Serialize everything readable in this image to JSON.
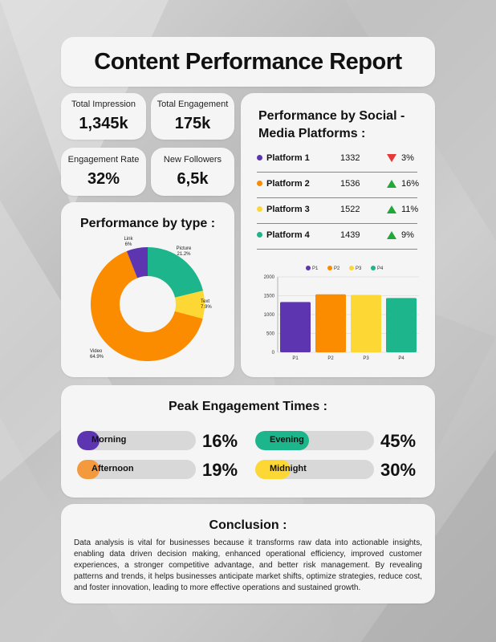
{
  "title": "Content Performance Report",
  "stats": [
    {
      "label": "Total Impression",
      "value": "1,345k"
    },
    {
      "label": "Total Engagement",
      "value": "175k"
    },
    {
      "label": "Engagement Rate",
      "value": "32%"
    },
    {
      "label": "New Followers",
      "value": "6,5k"
    }
  ],
  "by_type": {
    "heading": "Performance by type :",
    "slices": [
      {
        "name": "Picture",
        "percent_label": "21.2%",
        "value": 21.2,
        "color": "#1db58b"
      },
      {
        "name": "Text",
        "percent_label": "7.9%",
        "value": 7.9,
        "color": "#fdd835"
      },
      {
        "name": "Video",
        "percent_label": "64.9%",
        "value": 64.9,
        "color": "#fb8c00"
      },
      {
        "name": "Link",
        "percent_label": "6%",
        "value": 6,
        "color": "#5e35b1"
      }
    ]
  },
  "social": {
    "heading": "Performance by Social - Media Platforms :",
    "platforms": [
      {
        "name": "Platform 1",
        "value": "1332",
        "change": "3%",
        "trend": "down",
        "color": "#5e35b1"
      },
      {
        "name": "Platform 2",
        "value": "1536",
        "change": "16%",
        "trend": "up",
        "color": "#fb8c00"
      },
      {
        "name": "Platform 3",
        "value": "1522",
        "change": "11%",
        "trend": "up",
        "color": "#fdd835"
      },
      {
        "name": "Platform 4",
        "value": "1439",
        "change": "9%",
        "trend": "up",
        "color": "#1db58b"
      }
    ],
    "trend_colors": {
      "up": "#22a83a",
      "down": "#e53935"
    }
  },
  "chart_data": {
    "type": "bar",
    "categories": [
      "P1",
      "P2",
      "P3",
      "P4"
    ],
    "values": [
      1332,
      1536,
      1522,
      1439
    ],
    "colors": [
      "#5e35b1",
      "#fb8c00",
      "#fdd835",
      "#1db58b"
    ],
    "legend": [
      "P1",
      "P2",
      "P3",
      "P4"
    ],
    "legend_position": "top",
    "ylim": [
      0,
      2000
    ],
    "yticks": [
      0,
      500,
      1000,
      1500,
      2000
    ],
    "grid": true
  },
  "peak": {
    "heading": "Peak Engagement Times :",
    "items": [
      {
        "label": "Morning",
        "percent": "16%",
        "fill": 0.16,
        "color": "#5e35b1"
      },
      {
        "label": "Afternoon",
        "percent": "19%",
        "fill": 0.19,
        "color": "#f59a3c"
      },
      {
        "label": "Evening",
        "percent": "45%",
        "fill": 0.45,
        "color": "#1db58b"
      },
      {
        "label": "Midnight",
        "percent": "30%",
        "fill": 0.3,
        "color": "#fdd835"
      }
    ]
  },
  "conclusion": {
    "heading": "Conclusion :",
    "text": "Data analysis is vital for businesses because it transforms raw data into actionable insights, enabling data driven decision making, enhanced operational efficiency,  improved customer experiences, a stronger competitive advantage, and better risk management. By revealing patterns and trends, it helps businesses anticipate market shifts, optimize strategies, reduce cost, and foster innovation, leading to more effective operations and sustained growth."
  }
}
